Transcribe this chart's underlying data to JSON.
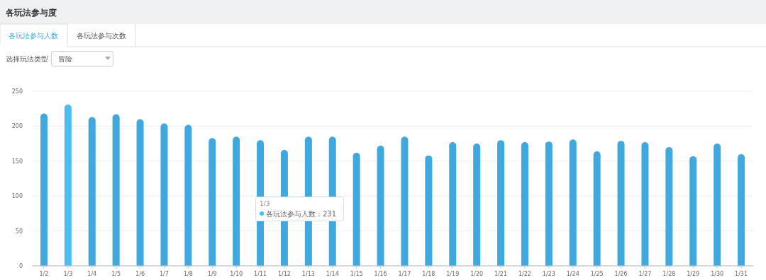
{
  "chart_data": {
    "type": "bar",
    "title": "各玩法参与度",
    "annotations": [
      "各玩法参与人数",
      "各玩法参与次数",
      "选择玩法类型",
      "冒险",
      "1/3",
      "各玩法参与人数：231"
    ],
    "categories": [
      "1/2",
      "1/3",
      "1/4",
      "1/5",
      "1/6",
      "1/7",
      "1/8",
      "1/9",
      "1/10",
      "1/11",
      "1/12",
      "1/13",
      "1/14",
      "1/15",
      "1/16",
      "1/17",
      "1/18",
      "1/19",
      "1/20",
      "1/21",
      "1/22",
      "1/23",
      "1/24",
      "1/25",
      "1/26",
      "1/27",
      "1/28",
      "1/29",
      "1/30",
      "1/31"
    ],
    "values": [
      218,
      231,
      213,
      217,
      210,
      204,
      202,
      183,
      185,
      180,
      166,
      185,
      185,
      162,
      172,
      185,
      158,
      177,
      175,
      180,
      177,
      178,
      181,
      164,
      179,
      177,
      170,
      157,
      175,
      160
    ],
    "colors": [
      "#3ea8df",
      "#4cbcf2",
      "#3ea8df",
      "#3ea8df",
      "#3ea8df",
      "#3ea8df",
      "#3ea8df",
      "#3ea8df",
      "#3ea8df",
      "#3ea8df",
      "#3ea8df",
      "#3ea8df",
      "#3ea8df",
      "#3ea8df",
      "#3ea8df",
      "#3ea8df",
      "#3ea8df",
      "#3ea8df",
      "#3ea8df",
      "#3ea8df",
      "#3ea8df",
      "#3ea8df",
      "#3ea8df",
      "#3ea8df",
      "#3ea8df",
      "#3ea8df",
      "#3ea8df",
      "#3ea8df",
      "#3ea8df",
      "#3ea8df"
    ],
    "ylim": [
      0,
      250
    ],
    "yticks": [
      0,
      50,
      100,
      150,
      200,
      250
    ],
    "grid": "y"
  }
}
